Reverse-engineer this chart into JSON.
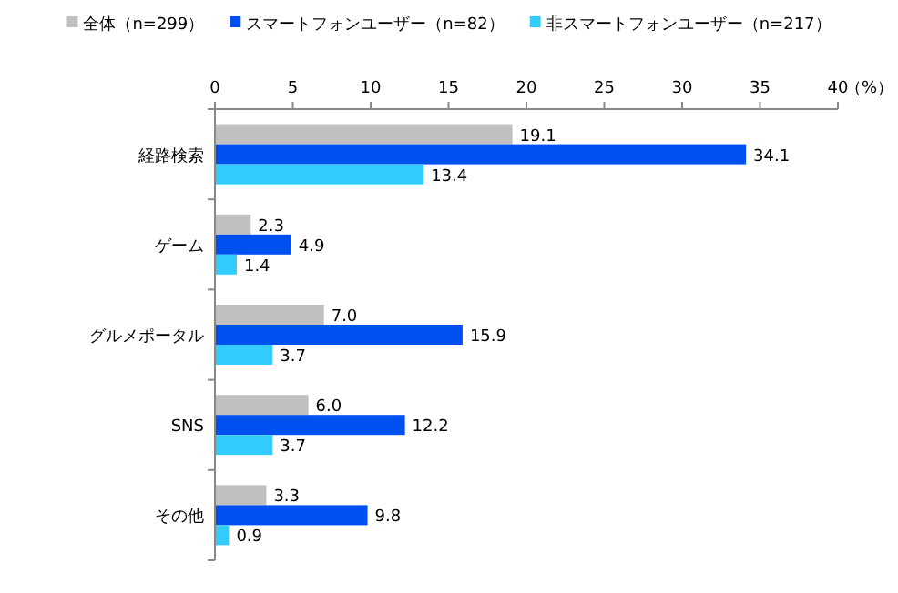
{
  "chart_data": {
    "type": "bar",
    "orientation": "horizontal",
    "xlabel": "（%）",
    "categories": [
      "経路検索",
      "ゲーム",
      "グルメポータル",
      "SNS",
      "その他"
    ],
    "series": [
      {
        "name": "全体（n=299）",
        "color": "#c0c0c0",
        "values": [
          19.1,
          2.3,
          7.0,
          6.0,
          3.3
        ],
        "value_labels": [
          "19.1",
          "2.3",
          "7.0",
          "6.0",
          "3.3"
        ]
      },
      {
        "name": "スマートフォンユーザー（n=82）",
        "color": "#0050f0",
        "values": [
          34.1,
          4.9,
          15.9,
          12.2,
          9.8
        ],
        "value_labels": [
          "34.1",
          "4.9",
          "15.9",
          "12.2",
          "9.8"
        ]
      },
      {
        "name": "非スマートフォンユーザー（n=217）",
        "color": "#33ccff",
        "values": [
          13.4,
          1.4,
          3.7,
          3.7,
          0.9
        ],
        "value_labels": [
          "13.4",
          "1.4",
          "3.7",
          "3.7",
          "0.9"
        ]
      }
    ],
    "xlim": [
      0,
      40
    ],
    "xticks": [
      0,
      5,
      10,
      15,
      20,
      25,
      30,
      35,
      40
    ],
    "legend": "top"
  }
}
